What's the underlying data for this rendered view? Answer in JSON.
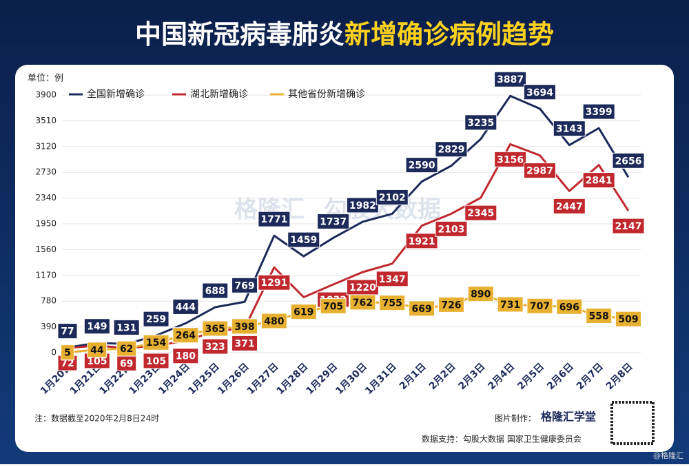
{
  "header": {
    "title": [
      "中国新冠病毒肺炎",
      "新增确诊病例趋势"
    ]
  },
  "chart_data": {
    "type": "line",
    "unit": "单位：例",
    "categories": [
      "1月20日",
      "1月21日",
      "1月22日",
      "1月23日",
      "1月24日",
      "1月25日",
      "1月26日",
      "1月27日",
      "1月28日",
      "1月29日",
      "1月30日",
      "1月31日",
      "2月1日",
      "2月2日",
      "2月3日",
      "2月4日",
      "2月5日",
      "2月6日",
      "2月7日",
      "2月8日"
    ],
    "series": [
      {
        "name": "全国新增确诊",
        "color": "#1c2a5a",
        "text_color": "#ffffff",
        "values": [
          77,
          149,
          131,
          259,
          444,
          688,
          769,
          1771,
          1459,
          1737,
          1982,
          2102,
          2590,
          2829,
          3235,
          3887,
          3694,
          3143,
          3399,
          2656
        ]
      },
      {
        "name": "湖北新增确诊",
        "color": "#c0282e",
        "text_color": "#ffffff",
        "values": [
          72,
          105,
          69,
          105,
          180,
          323,
          371,
          1291,
          840,
          1032,
          1220,
          1347,
          1921,
          2103,
          2345,
          3156,
          2987,
          2447,
          2841,
          2147
        ]
      },
      {
        "name": "其他省份新增确诊",
        "color": "#e8b030",
        "text_color": "#111111",
        "values": [
          5,
          44,
          62,
          154,
          264,
          365,
          398,
          480,
          619,
          705,
          762,
          755,
          669,
          726,
          890,
          731,
          707,
          696,
          558,
          509
        ]
      }
    ],
    "ylim": [
      0,
      3900
    ],
    "yticks": [
      0,
      390,
      780,
      1170,
      1560,
      1950,
      2340,
      2730,
      3120,
      3510,
      3900
    ],
    "grid": true
  },
  "footer": {
    "note": "注：数据截至2020年2月8日24时",
    "maker_label": "图片制作：",
    "maker": "格隆汇学堂",
    "source": "数据支持：勾股大数据  国家卫生健康委员会",
    "watermark": [
      "格隆汇",
      "勾股大数据"
    ],
    "corner": "@格隆汇"
  }
}
